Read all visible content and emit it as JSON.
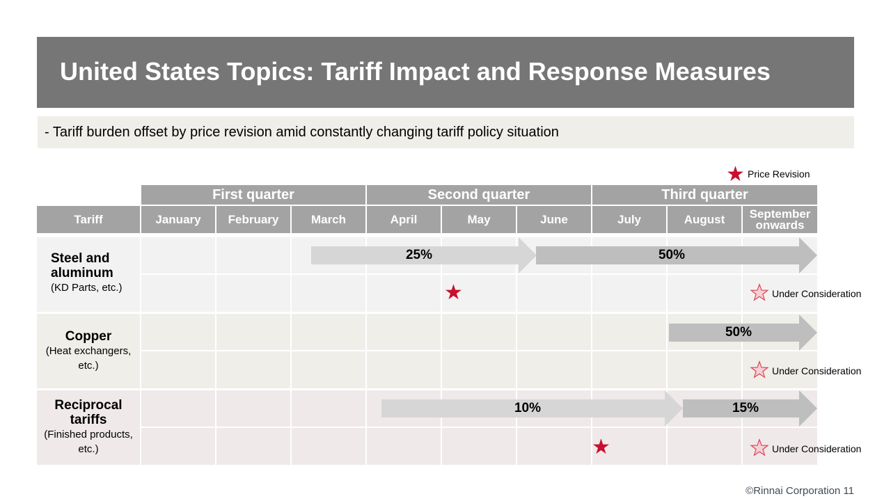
{
  "slide": {
    "title": "United States Topics: Tariff Impact and Response Measures",
    "subtitle": "- Tariff burden offset by price revision amid constantly changing tariff policy situation",
    "footer": "©Rinnai Corporation 11"
  },
  "legend": {
    "label": "Price Revision",
    "icon": "star-icon",
    "color": "#c8102e"
  },
  "table": {
    "quarters": [
      "First quarter",
      "Second quarter",
      "Third quarter"
    ],
    "tariff_header": "Tariff",
    "months": [
      "January",
      "February",
      "March",
      "April",
      "May",
      "June",
      "July",
      "August"
    ],
    "last_month": [
      "September",
      "onwards"
    ],
    "rows": [
      {
        "name": [
          "Steel and",
          "aluminum"
        ],
        "detail": "(KD Parts, etc.)",
        "rates": [
          "25%",
          "50%"
        ],
        "status": "Under Consideration"
      },
      {
        "name": [
          "Copper"
        ],
        "detail": [
          "(Heat exchangers,",
          "etc.)"
        ],
        "rates": [
          "50%"
        ],
        "status": "Under Consideration"
      },
      {
        "name": [
          "Reciprocal",
          "tariffs"
        ],
        "detail": [
          "(Finished products,",
          "etc.)"
        ],
        "rates": [
          "10%",
          "15%"
        ],
        "status": "Under Consideration"
      }
    ]
  },
  "colors": {
    "header_gray": "#a3a3a3",
    "steel_row": "#f2f2f2",
    "copper_row": "#efeee9",
    "reciprocal_row": "#efe9ea",
    "arrow_light": "#d6d6d6",
    "arrow_dark": "#bebebe",
    "star_red": "#c8102e"
  }
}
